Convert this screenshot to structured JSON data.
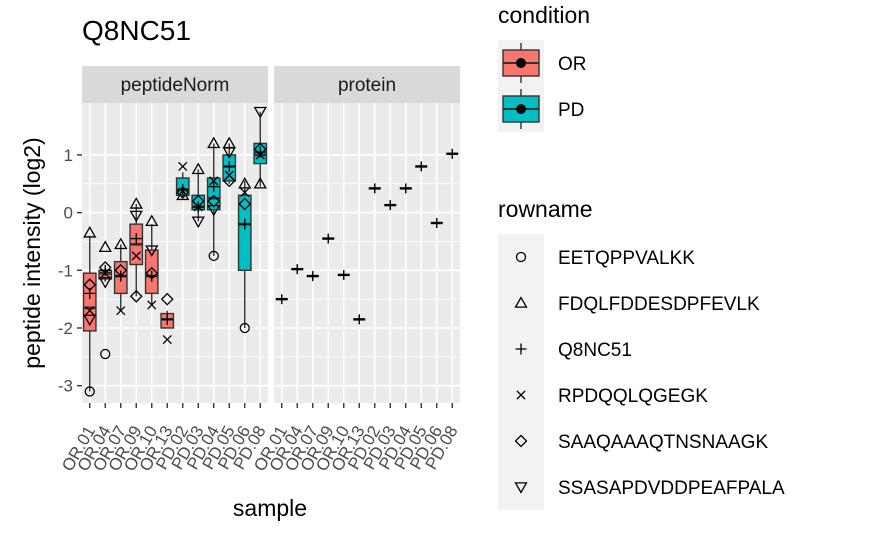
{
  "chart_data": {
    "type": "boxplot",
    "title": "Q8NC51",
    "xlabel": "sample",
    "ylabel": "peptide intensity (log2)",
    "ylim": [
      -3.3,
      1.9
    ],
    "yticks": [
      -3,
      -2,
      -1,
      0,
      1
    ],
    "grid": true,
    "facets": [
      "peptideNorm",
      "protein"
    ],
    "samples": [
      "OR.01",
      "OR.04",
      "OR.07",
      "OR.09",
      "OR.10",
      "OR.13",
      "PD.02",
      "PD.03",
      "PD.04",
      "PD.05",
      "PD.06",
      "PD.08"
    ],
    "sample_condition": [
      "OR",
      "OR",
      "OR",
      "OR",
      "OR",
      "OR",
      "PD",
      "PD",
      "PD",
      "PD",
      "PD",
      "PD"
    ],
    "conditions": [
      {
        "name": "OR",
        "color": "#F8766D"
      },
      {
        "name": "PD",
        "color": "#00BFC4"
      }
    ],
    "rownames": [
      {
        "name": "EETQPPVALKK",
        "shape": "circle"
      },
      {
        "name": "FDQLFDDESDPFEVLK",
        "shape": "triangle-up"
      },
      {
        "name": "Q8NC51",
        "shape": "plus"
      },
      {
        "name": "RPDQQLQGEGK",
        "shape": "cross"
      },
      {
        "name": "SAAQAAAQTNSNAAGK",
        "shape": "diamond"
      },
      {
        "name": "SSASAPDVDDPEAFPALA",
        "shape": "triangle-down"
      }
    ],
    "legend_titles": {
      "condition": "condition",
      "rowname": "rowname"
    },
    "legend_position": "right",
    "peptideNorm": {
      "boxes": [
        {
          "sample": "OR.01",
          "min": -3.1,
          "q1": -2.05,
          "median": -1.65,
          "q3": -1.05,
          "max": -0.4
        },
        {
          "sample": "OR.04",
          "min": -1.2,
          "q1": -1.15,
          "median": -1.05,
          "q3": -1.0,
          "max": -0.95
        },
        {
          "sample": "OR.07",
          "min": -1.7,
          "q1": -1.4,
          "median": -1.1,
          "q3": -0.85,
          "max": -0.55
        },
        {
          "sample": "OR.09",
          "min": -1.45,
          "q1": -0.9,
          "median": -0.55,
          "q3": -0.2,
          "max": 0.15
        },
        {
          "sample": "OR.10",
          "min": -1.6,
          "q1": -1.4,
          "median": -1.1,
          "q3": -0.65,
          "max": -0.2
        },
        {
          "sample": "OR.13",
          "min": -2.0,
          "q1": -2.0,
          "median": -1.85,
          "q3": -1.75,
          "max": -1.7
        },
        {
          "sample": "PD.02",
          "min": 0.25,
          "q1": 0.3,
          "median": 0.4,
          "q3": 0.6,
          "max": 0.7
        },
        {
          "sample": "PD.03",
          "min": -0.15,
          "q1": 0.05,
          "median": 0.1,
          "q3": 0.3,
          "max": 0.75
        },
        {
          "sample": "PD.04",
          "min": -0.75,
          "q1": 0.05,
          "median": 0.25,
          "q3": 0.6,
          "max": 1.2
        },
        {
          "sample": "PD.05",
          "min": 0.5,
          "q1": 0.55,
          "median": 0.8,
          "q3": 1.0,
          "max": 1.2
        },
        {
          "sample": "PD.06",
          "min": -2.0,
          "q1": -1.0,
          "median": -0.2,
          "q3": 0.3,
          "max": 0.55
        },
        {
          "sample": "PD.08",
          "min": 0.45,
          "q1": 0.85,
          "median": 1.0,
          "q3": 1.2,
          "max": 1.75
        }
      ],
      "points": [
        {
          "sample": "OR.01",
          "rowname": "EETQPPVALKK",
          "y": -3.1
        },
        {
          "sample": "OR.01",
          "rowname": "FDQLFDDESDPFEVLK",
          "y": -0.35
        },
        {
          "sample": "OR.01",
          "rowname": "Q8NC51",
          "y": -1.4
        },
        {
          "sample": "OR.01",
          "rowname": "RPDQQLQGEGK",
          "y": -1.7
        },
        {
          "sample": "OR.01",
          "rowname": "SAAQAAAQTNSNAAGK",
          "y": -1.25
        },
        {
          "sample": "OR.01",
          "rowname": "SSASAPDVDDPEAFPALA",
          "y": -1.85
        },
        {
          "sample": "OR.04",
          "rowname": "EETQPPVALKK",
          "y": -2.45
        },
        {
          "sample": "OR.04",
          "rowname": "FDQLFDDESDPFEVLK",
          "y": -0.6
        },
        {
          "sample": "OR.04",
          "rowname": "Q8NC51",
          "y": -1.0
        },
        {
          "sample": "OR.04",
          "rowname": "RPDQQLQGEGK",
          "y": -1.05
        },
        {
          "sample": "OR.04",
          "rowname": "SAAQAAAQTNSNAAGK",
          "y": -0.95
        },
        {
          "sample": "OR.04",
          "rowname": "SSASAPDVDDPEAFPALA",
          "y": -1.2
        },
        {
          "sample": "OR.07",
          "rowname": "FDQLFDDESDPFEVLK",
          "y": -0.55
        },
        {
          "sample": "OR.07",
          "rowname": "Q8NC51",
          "y": -1.1
        },
        {
          "sample": "OR.07",
          "rowname": "RPDQQLQGEGK",
          "y": -1.7
        },
        {
          "sample": "OR.07",
          "rowname": "SAAQAAAQTNSNAAGK",
          "y": -1.0
        },
        {
          "sample": "OR.09",
          "rowname": "FDQLFDDESDPFEVLK",
          "y": 0.15
        },
        {
          "sample": "OR.09",
          "rowname": "Q8NC51",
          "y": -0.45
        },
        {
          "sample": "OR.09",
          "rowname": "RPDQQLQGEGK",
          "y": -0.75
        },
        {
          "sample": "OR.09",
          "rowname": "SAAQAAAQTNSNAAGK",
          "y": -1.45
        },
        {
          "sample": "OR.09",
          "rowname": "SSASAPDVDDPEAFPALA",
          "y": -0.05
        },
        {
          "sample": "OR.10",
          "rowname": "FDQLFDDESDPFEVLK",
          "y": -0.15
        },
        {
          "sample": "OR.10",
          "rowname": "Q8NC51",
          "y": -1.1
        },
        {
          "sample": "OR.10",
          "rowname": "RPDQQLQGEGK",
          "y": -1.6
        },
        {
          "sample": "OR.10",
          "rowname": "SAAQAAAQTNSNAAGK",
          "y": -1.05
        },
        {
          "sample": "OR.10",
          "rowname": "SSASAPDVDDPEAFPALA",
          "y": -0.65
        },
        {
          "sample": "OR.13",
          "rowname": "Q8NC51",
          "y": -1.85
        },
        {
          "sample": "OR.13",
          "rowname": "RPDQQLQGEGK",
          "y": -2.2
        },
        {
          "sample": "OR.13",
          "rowname": "SAAQAAAQTNSNAAGK",
          "y": -1.5
        },
        {
          "sample": "PD.02",
          "rowname": "Q8NC51",
          "y": 0.4
        },
        {
          "sample": "PD.02",
          "rowname": "RPDQQLQGEGK",
          "y": 0.8
        },
        {
          "sample": "PD.02",
          "rowname": "SAAQAAAQTNSNAAGK",
          "y": 0.35
        },
        {
          "sample": "PD.02",
          "rowname": "FDQLFDDESDPFEVLK",
          "y": 0.3
        },
        {
          "sample": "PD.03",
          "rowname": "FDQLFDDESDPFEVLK",
          "y": 0.75
        },
        {
          "sample": "PD.03",
          "rowname": "Q8NC51",
          "y": 0.1
        },
        {
          "sample": "PD.03",
          "rowname": "RPDQQLQGEGK",
          "y": 0.1
        },
        {
          "sample": "PD.03",
          "rowname": "SAAQAAAQTNSNAAGK",
          "y": 0.2
        },
        {
          "sample": "PD.03",
          "rowname": "SSASAPDVDDPEAFPALA",
          "y": -0.15
        },
        {
          "sample": "PD.04",
          "rowname": "EETQPPVALKK",
          "y": -0.75
        },
        {
          "sample": "PD.04",
          "rowname": "FDQLFDDESDPFEVLK",
          "y": 1.2
        },
        {
          "sample": "PD.04",
          "rowname": "Q8NC51",
          "y": 0.45
        },
        {
          "sample": "PD.04",
          "rowname": "RPDQQLQGEGK",
          "y": 0.55
        },
        {
          "sample": "PD.04",
          "rowname": "SAAQAAAQTNSNAAGK",
          "y": 0.2
        },
        {
          "sample": "PD.04",
          "rowname": "SSASAPDVDDPEAFPALA",
          "y": 0.05
        },
        {
          "sample": "PD.05",
          "rowname": "FDQLFDDESDPFEVLK",
          "y": 1.2
        },
        {
          "sample": "PD.05",
          "rowname": "Q8NC51",
          "y": 0.8
        },
        {
          "sample": "PD.05",
          "rowname": "RPDQQLQGEGK",
          "y": 0.65
        },
        {
          "sample": "PD.05",
          "rowname": "SAAQAAAQTNSNAAGK",
          "y": 0.55
        },
        {
          "sample": "PD.05",
          "rowname": "SSASAPDVDDPEAFPALA",
          "y": 1.05
        },
        {
          "sample": "PD.06",
          "rowname": "EETQPPVALKK",
          "y": -2.0
        },
        {
          "sample": "PD.06",
          "rowname": "FDQLFDDESDPFEVLK",
          "y": 0.5
        },
        {
          "sample": "PD.06",
          "rowname": "Q8NC51",
          "y": -0.2
        },
        {
          "sample": "PD.06",
          "rowname": "RPDQQLQGEGK",
          "y": 0.35
        },
        {
          "sample": "PD.06",
          "rowname": "SAAQAAAQTNSNAAGK",
          "y": 0.15
        },
        {
          "sample": "PD.08",
          "rowname": "FDQLFDDESDPFEVLK",
          "y": 0.5
        },
        {
          "sample": "PD.08",
          "rowname": "Q8NC51",
          "y": 1.05
        },
        {
          "sample": "PD.08",
          "rowname": "RPDQQLQGEGK",
          "y": 1.0
        },
        {
          "sample": "PD.08",
          "rowname": "SAAQAAAQTNSNAAGK",
          "y": 1.1
        },
        {
          "sample": "PD.08",
          "rowname": "SSASAPDVDDPEAFPALA",
          "y": 1.75
        }
      ]
    },
    "protein": {
      "points": [
        {
          "sample": "OR.01",
          "rowname": "Q8NC51",
          "y": -1.5
        },
        {
          "sample": "OR.04",
          "rowname": "Q8NC51",
          "y": -0.98
        },
        {
          "sample": "OR.07",
          "rowname": "Q8NC51",
          "y": -1.1
        },
        {
          "sample": "OR.09",
          "rowname": "Q8NC51",
          "y": -0.45
        },
        {
          "sample": "OR.10",
          "rowname": "Q8NC51",
          "y": -1.08
        },
        {
          "sample": "OR.13",
          "rowname": "Q8NC51",
          "y": -1.85
        },
        {
          "sample": "PD.02",
          "rowname": "Q8NC51",
          "y": 0.42
        },
        {
          "sample": "PD.03",
          "rowname": "Q8NC51",
          "y": 0.13
        },
        {
          "sample": "PD.04",
          "rowname": "Q8NC51",
          "y": 0.42
        },
        {
          "sample": "PD.05",
          "rowname": "Q8NC51",
          "y": 0.8
        },
        {
          "sample": "PD.06",
          "rowname": "Q8NC51",
          "y": -0.18
        },
        {
          "sample": "PD.08",
          "rowname": "Q8NC51",
          "y": 1.02
        }
      ]
    }
  }
}
